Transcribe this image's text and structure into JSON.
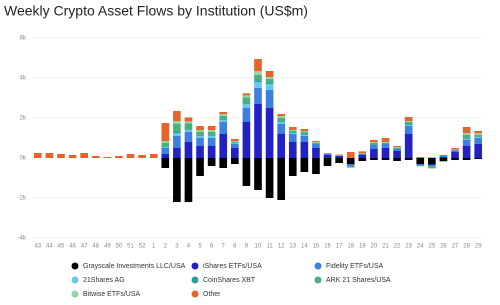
{
  "chart_data": {
    "type": "stacked_bar",
    "title": "Weekly Crypto Asset Flows by Institution (US$m)",
    "categories": [
      "43",
      "44",
      "45",
      "46",
      "47",
      "48",
      "49",
      "50",
      "51",
      "52",
      "1",
      "2",
      "3",
      "4",
      "5",
      "6",
      "7",
      "8",
      "9",
      "10",
      "11",
      "12",
      "13",
      "14",
      "15",
      "16",
      "17",
      "18",
      "19",
      "20",
      "21",
      "22",
      "23",
      "24",
      "25",
      "26",
      "27",
      "28",
      "29"
    ],
    "series": [
      {
        "name": "Grayscale Investments LLC/USA",
        "color": "#000000",
        "values": [
          0,
          0,
          0,
          0,
          0,
          0,
          0,
          0,
          0,
          0,
          0,
          -500,
          -2200,
          -2200,
          -900,
          -400,
          -500,
          -300,
          -1400,
          -1600,
          -2000,
          -2100,
          -900,
          -700,
          -800,
          -400,
          -250,
          -300,
          -150,
          -100,
          -100,
          -150,
          -100,
          -300,
          -300,
          -150,
          -100,
          -100,
          -50
        ]
      },
      {
        "name": "iShares ETFs/USA",
        "color": "#2222c4",
        "values": [
          0,
          0,
          0,
          0,
          0,
          0,
          0,
          0,
          0,
          0,
          0,
          200,
          500,
          800,
          600,
          600,
          1200,
          500,
          1800,
          2700,
          2500,
          1200,
          800,
          800,
          500,
          150,
          100,
          0,
          150,
          450,
          500,
          350,
          1200,
          0,
          -50,
          50,
          300,
          600,
          700
        ]
      },
      {
        "name": "Fidelity ETFs/USA",
        "color": "#3f7fe0",
        "values": [
          0,
          0,
          0,
          0,
          0,
          0,
          0,
          0,
          0,
          0,
          0,
          300,
          600,
          500,
          400,
          400,
          600,
          200,
          700,
          800,
          900,
          500,
          400,
          300,
          200,
          50,
          20,
          -100,
          50,
          200,
          200,
          100,
          400,
          -80,
          -50,
          50,
          80,
          300,
          300
        ]
      },
      {
        "name": "21Shares AG",
        "color": "#66c8f2",
        "values": [
          0,
          0,
          0,
          0,
          0,
          0,
          0,
          0,
          0,
          0,
          0,
          50,
          150,
          100,
          100,
          100,
          100,
          50,
          200,
          300,
          300,
          100,
          50,
          50,
          0,
          0,
          0,
          0,
          0,
          0,
          0,
          0,
          50,
          0,
          0,
          0,
          0,
          50,
          50
        ]
      },
      {
        "name": "CoinShares XBT",
        "color": "#2a9d9d",
        "values": [
          0,
          0,
          0,
          0,
          0,
          0,
          0,
          0,
          0,
          0,
          0,
          0,
          50,
          30,
          0,
          0,
          0,
          0,
          30,
          50,
          50,
          0,
          0,
          0,
          0,
          0,
          0,
          0,
          0,
          0,
          0,
          0,
          0,
          0,
          0,
          0,
          0,
          0,
          0
        ]
      },
      {
        "name": "ARK 21 Shares/USA",
        "color": "#4caf80",
        "values": [
          0,
          0,
          0,
          0,
          0,
          0,
          0,
          0,
          0,
          0,
          0,
          200,
          400,
          300,
          200,
          200,
          200,
          50,
          300,
          300,
          200,
          200,
          100,
          150,
          50,
          0,
          0,
          -80,
          0,
          100,
          50,
          50,
          150,
          -20,
          -100,
          -30,
          50,
          200,
          100
        ]
      },
      {
        "name": "Bitwise ETFs/USA",
        "color": "#93d6a4",
        "values": [
          0,
          0,
          0,
          0,
          0,
          0,
          0,
          0,
          0,
          0,
          0,
          100,
          150,
          100,
          100,
          100,
          100,
          50,
          100,
          200,
          100,
          100,
          50,
          50,
          50,
          20,
          20,
          0,
          30,
          50,
          50,
          50,
          50,
          -20,
          -30,
          0,
          20,
          100,
          100
        ]
      },
      {
        "name": "Other",
        "color": "#e8622c",
        "values": [
          250,
          250,
          200,
          150,
          250,
          100,
          50,
          100,
          200,
          150,
          200,
          900,
          500,
          200,
          200,
          200,
          100,
          100,
          100,
          600,
          300,
          100,
          150,
          100,
          50,
          30,
          30,
          300,
          100,
          100,
          200,
          50,
          200,
          50,
          30,
          50,
          50,
          300,
          100
        ]
      }
    ],
    "ylim": [
      -4000,
      6000
    ],
    "yticks": [
      {
        "value": -4000,
        "label": "-4k"
      },
      {
        "value": -2000,
        "label": "-2k"
      },
      {
        "value": 0,
        "label": "0k"
      },
      {
        "value": 2000,
        "label": "2k"
      },
      {
        "value": 4000,
        "label": "4k"
      },
      {
        "value": 6000,
        "label": "6k"
      }
    ],
    "grid": true,
    "legend": "bottom"
  }
}
